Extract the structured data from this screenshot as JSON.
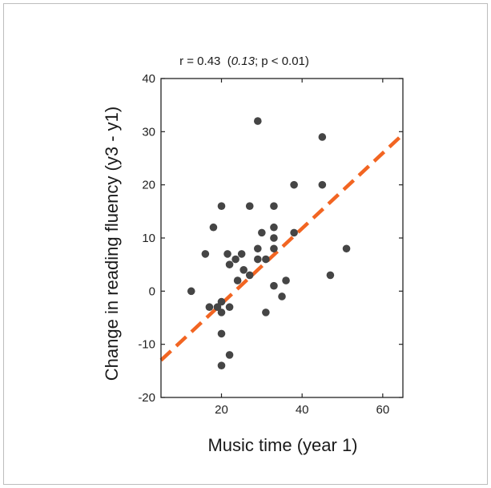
{
  "chart_data": {
    "type": "scatter",
    "title": {
      "r": "r = 0.43",
      "open": "  (",
      "italic": "0.13",
      "rest": "; p < 0.01)"
    },
    "xlabel": "Music time (year 1)",
    "ylabel": "Change in reading fluency (y3 - y1)",
    "xlim": [
      5,
      65
    ],
    "ylim": [
      -20,
      40
    ],
    "xticks": [
      20,
      40,
      60
    ],
    "yticks": [
      -20,
      -10,
      0,
      10,
      20,
      30,
      40
    ],
    "xtick_labels": [
      "20",
      "40",
      "60"
    ],
    "ytick_labels": [
      "-20",
      "-10",
      "0",
      "10",
      "20",
      "30",
      "40"
    ],
    "grid": false,
    "points": [
      {
        "x": 12.5,
        "y": 0
      },
      {
        "x": 16,
        "y": 7
      },
      {
        "x": 17,
        "y": -3
      },
      {
        "x": 18,
        "y": 12
      },
      {
        "x": 19,
        "y": -3
      },
      {
        "x": 20,
        "y": 16
      },
      {
        "x": 20,
        "y": -2
      },
      {
        "x": 20,
        "y": -4
      },
      {
        "x": 20,
        "y": -8
      },
      {
        "x": 20,
        "y": -14
      },
      {
        "x": 21.5,
        "y": 7
      },
      {
        "x": 22,
        "y": 5
      },
      {
        "x": 22,
        "y": -3
      },
      {
        "x": 22,
        "y": -12
      },
      {
        "x": 23.5,
        "y": 6
      },
      {
        "x": 24,
        "y": 2
      },
      {
        "x": 25,
        "y": 7
      },
      {
        "x": 25.5,
        "y": 4
      },
      {
        "x": 27,
        "y": 16
      },
      {
        "x": 27,
        "y": 3
      },
      {
        "x": 29,
        "y": 32
      },
      {
        "x": 29,
        "y": 8
      },
      {
        "x": 29,
        "y": 6
      },
      {
        "x": 30,
        "y": 11
      },
      {
        "x": 31,
        "y": 6
      },
      {
        "x": 31,
        "y": -4
      },
      {
        "x": 33,
        "y": 16
      },
      {
        "x": 33,
        "y": 12
      },
      {
        "x": 33,
        "y": 10
      },
      {
        "x": 33,
        "y": 8
      },
      {
        "x": 33,
        "y": 1
      },
      {
        "x": 35,
        "y": -1
      },
      {
        "x": 36,
        "y": 2
      },
      {
        "x": 38,
        "y": 20
      },
      {
        "x": 38,
        "y": 11
      },
      {
        "x": 45,
        "y": 29
      },
      {
        "x": 45,
        "y": 20
      },
      {
        "x": 47,
        "y": 3
      },
      {
        "x": 51,
        "y": 8
      }
    ],
    "fit_line": {
      "x": [
        5,
        65
      ],
      "y": [
        -13,
        29.5
      ]
    },
    "colors": {
      "points": "#454545",
      "fit_line": "#f26522",
      "axes": "#222222"
    }
  }
}
